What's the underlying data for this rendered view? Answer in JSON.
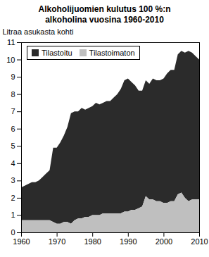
{
  "chart_data": {
    "type": "area",
    "title": "Alkoholijuomien kulutus 100 %:n alkoholina vuosina 1960-2010",
    "ylabel": "Litraa asukasta kohti",
    "stacked": true,
    "legend": "top-left",
    "x": [
      1960,
      1961,
      1962,
      1963,
      1964,
      1965,
      1966,
      1967,
      1968,
      1969,
      1970,
      1971,
      1972,
      1973,
      1974,
      1975,
      1976,
      1977,
      1978,
      1979,
      1980,
      1981,
      1982,
      1983,
      1984,
      1985,
      1986,
      1987,
      1988,
      1989,
      1990,
      1991,
      1992,
      1993,
      1994,
      1995,
      1996,
      1997,
      1998,
      1999,
      2000,
      2001,
      2002,
      2003,
      2004,
      2005,
      2006,
      2007,
      2008,
      2009,
      2010
    ],
    "series": [
      {
        "name": "Tilastoitu",
        "color": "#2b2b2b",
        "values": [
          1.9,
          2.0,
          2.1,
          2.2,
          2.2,
          2.3,
          2.5,
          2.7,
          2.9,
          4.3,
          4.4,
          4.7,
          5.0,
          5.5,
          6.4,
          6.3,
          6.2,
          6.4,
          6.2,
          6.3,
          6.3,
          6.5,
          6.4,
          6.4,
          6.5,
          6.5,
          6.7,
          6.9,
          7.2,
          7.6,
          7.7,
          7.4,
          7.2,
          6.8,
          6.7,
          6.7,
          6.7,
          7.0,
          7.0,
          7.0,
          7.2,
          7.5,
          7.6,
          7.6,
          8.1,
          8.2,
          8.4,
          8.7,
          8.5,
          8.3,
          8.1
        ]
      },
      {
        "name": "Tilastoimaton",
        "color": "#bfbfbf",
        "values": [
          0.7,
          0.7,
          0.7,
          0.7,
          0.7,
          0.7,
          0.7,
          0.7,
          0.7,
          0.6,
          0.5,
          0.5,
          0.6,
          0.6,
          0.5,
          0.7,
          0.8,
          0.8,
          0.9,
          0.9,
          1.0,
          1.0,
          1.0,
          1.1,
          1.1,
          1.1,
          1.1,
          1.1,
          1.1,
          1.2,
          1.2,
          1.3,
          1.3,
          1.4,
          1.5,
          2.1,
          1.9,
          1.9,
          1.8,
          1.8,
          1.7,
          1.7,
          1.8,
          1.8,
          2.2,
          2.3,
          2.0,
          1.8,
          1.9,
          1.9,
          1.9
        ]
      }
    ],
    "xlim": [
      1960,
      2010
    ],
    "xticks": [
      1960,
      1970,
      1980,
      1990,
      2000,
      2010
    ],
    "ylim": [
      0,
      11
    ],
    "yticks": [
      0,
      1,
      2,
      3,
      4,
      5,
      6,
      7,
      8,
      9,
      10,
      11
    ]
  }
}
